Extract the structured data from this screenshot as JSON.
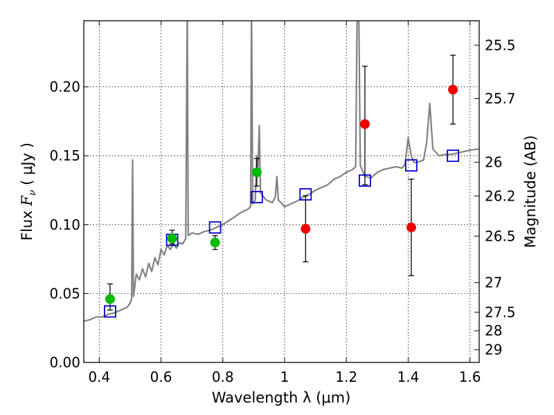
{
  "chart_data": {
    "type": "scatter",
    "xlabel": "Wavelength  λ (μm)",
    "ylabel_text": "Flux  ",
    "ylabel_symbol": "F",
    "ylabel_sub": "ν",
    "ylabel_unit": " ( μJy )",
    "y2label": "Magnitude (AB)",
    "xlim": [
      0.35,
      1.63
    ],
    "ylim": [
      0.0,
      0.248
    ],
    "grid": true,
    "x_ticks": [
      0.4,
      0.6,
      0.8,
      1.0,
      1.2,
      1.4,
      1.6
    ],
    "x_tick_labels": [
      "0.4",
      "0.6",
      "0.8",
      "1",
      "1.2",
      "1.4",
      "1.6"
    ],
    "y_ticks": [
      0.0,
      0.05,
      0.1,
      0.15,
      0.2
    ],
    "y_tick_labels": [
      "0.00",
      "0.05",
      "0.10",
      "0.15",
      "0.20"
    ],
    "y2_ticks": [
      {
        "label": "25.5",
        "flux": 0.2303
      },
      {
        "label": "25.7",
        "flux": 0.1915
      },
      {
        "label": "26",
        "flux": 0.1453
      },
      {
        "label": "26.2",
        "flux": 0.1208
      },
      {
        "label": "26.5",
        "flux": 0.0917
      },
      {
        "label": "27",
        "flux": 0.0579
      },
      {
        "label": "27.5",
        "flux": 0.0365
      },
      {
        "label": "28",
        "flux": 0.023
      },
      {
        "label": "29",
        "flux": 0.0092
      }
    ],
    "colors": {
      "spectrum": "#808080",
      "green_points": "#00bb00",
      "red_points": "#ee0000",
      "squares": "#0000cc",
      "errorbars": "#000000",
      "grid": "#000000"
    },
    "series": [
      {
        "type": "line",
        "points": [
          [
            0.35,
            0.03
          ],
          [
            0.37,
            0.031
          ],
          [
            0.39,
            0.033
          ],
          [
            0.41,
            0.033
          ],
          [
            0.43,
            0.035
          ],
          [
            0.45,
            0.036
          ],
          [
            0.47,
            0.038
          ],
          [
            0.49,
            0.04
          ],
          [
            0.5,
            0.043
          ],
          [
            0.505,
            0.046
          ],
          [
            0.508,
            0.147
          ],
          [
            0.511,
            0.048
          ],
          [
            0.52,
            0.064
          ],
          [
            0.53,
            0.06
          ],
          [
            0.54,
            0.068
          ],
          [
            0.55,
            0.062
          ],
          [
            0.56,
            0.072
          ],
          [
            0.57,
            0.066
          ],
          [
            0.58,
            0.076
          ],
          [
            0.59,
            0.071
          ],
          [
            0.6,
            0.082
          ],
          [
            0.61,
            0.078
          ],
          [
            0.62,
            0.085
          ],
          [
            0.63,
            0.082
          ],
          [
            0.64,
            0.086
          ],
          [
            0.65,
            0.083
          ],
          [
            0.66,
            0.087
          ],
          [
            0.67,
            0.086
          ],
          [
            0.675,
            0.088
          ],
          [
            0.68,
            0.09
          ],
          [
            0.685,
            0.26
          ],
          [
            0.688,
            0.092
          ],
          [
            0.7,
            0.094
          ],
          [
            0.72,
            0.093
          ],
          [
            0.74,
            0.095
          ],
          [
            0.76,
            0.096
          ],
          [
            0.78,
            0.098
          ],
          [
            0.8,
            0.1
          ],
          [
            0.82,
            0.103
          ],
          [
            0.84,
            0.106
          ],
          [
            0.86,
            0.109
          ],
          [
            0.88,
            0.111
          ],
          [
            0.89,
            0.113
          ],
          [
            0.893,
            0.26
          ],
          [
            0.897,
            0.115
          ],
          [
            0.905,
            0.118
          ],
          [
            0.91,
            0.15
          ],
          [
            0.913,
            0.135
          ],
          [
            0.918,
            0.172
          ],
          [
            0.922,
            0.123
          ],
          [
            0.94,
            0.118
          ],
          [
            0.96,
            0.116
          ],
          [
            0.97,
            0.12
          ],
          [
            0.975,
            0.135
          ],
          [
            0.98,
            0.118
          ],
          [
            1.0,
            0.113
          ],
          [
            1.02,
            0.115
          ],
          [
            1.04,
            0.117
          ],
          [
            1.06,
            0.12
          ],
          [
            1.08,
            0.122
          ],
          [
            1.1,
            0.125
          ],
          [
            1.12,
            0.127
          ],
          [
            1.14,
            0.129
          ],
          [
            1.16,
            0.133
          ],
          [
            1.18,
            0.135
          ],
          [
            1.2,
            0.138
          ],
          [
            1.22,
            0.14
          ],
          [
            1.23,
            0.142
          ],
          [
            1.235,
            0.26
          ],
          [
            1.24,
            0.26
          ],
          [
            1.245,
            0.143
          ],
          [
            1.26,
            0.135
          ],
          [
            1.28,
            0.134
          ],
          [
            1.3,
            0.138
          ],
          [
            1.32,
            0.14
          ],
          [
            1.34,
            0.141
          ],
          [
            1.36,
            0.142
          ],
          [
            1.38,
            0.141
          ],
          [
            1.39,
            0.144
          ],
          [
            1.4,
            0.163
          ],
          [
            1.41,
            0.15
          ],
          [
            1.42,
            0.145
          ],
          [
            1.44,
            0.146
          ],
          [
            1.45,
            0.147
          ],
          [
            1.46,
            0.16
          ],
          [
            1.47,
            0.188
          ],
          [
            1.48,
            0.155
          ],
          [
            1.5,
            0.15
          ],
          [
            1.52,
            0.151
          ],
          [
            1.54,
            0.151
          ],
          [
            1.56,
            0.152
          ],
          [
            1.58,
            0.153
          ],
          [
            1.6,
            0.154
          ],
          [
            1.63,
            0.155
          ]
        ]
      },
      {
        "type": "scatter",
        "points": [
          {
            "x": 0.435,
            "y": 0.046,
            "yerr_low": 0.008,
            "yerr_high": 0.011
          },
          {
            "x": 0.636,
            "y": 0.09,
            "yerr_low": 0.004,
            "yerr_high": 0.006
          },
          {
            "x": 0.775,
            "y": 0.087,
            "yerr_low": 0.005,
            "yerr_high": 0.005
          },
          {
            "x": 0.91,
            "y": 0.138,
            "yerr_low": 0.01,
            "yerr_high": 0.01
          }
        ]
      },
      {
        "type": "scatter",
        "points": [
          {
            "x": 1.068,
            "y": 0.097,
            "yerr_low": 0.024,
            "yerr_high": 0.024
          },
          {
            "x": 1.26,
            "y": 0.173,
            "yerr_low": 0.044,
            "yerr_high": 0.042
          },
          {
            "x": 1.41,
            "y": 0.098,
            "yerr_low": 0.035,
            "yerr_high": 0.035
          },
          {
            "x": 1.545,
            "y": 0.198,
            "yerr_low": 0.025,
            "yerr_high": 0.025
          }
        ]
      },
      {
        "type": "scatter",
        "points": [
          {
            "x": 0.435,
            "y": 0.037
          },
          {
            "x": 0.636,
            "y": 0.089
          },
          {
            "x": 0.775,
            "y": 0.098
          },
          {
            "x": 0.91,
            "y": 0.12
          },
          {
            "x": 1.068,
            "y": 0.122
          },
          {
            "x": 1.26,
            "y": 0.132
          },
          {
            "x": 1.41,
            "y": 0.143
          },
          {
            "x": 1.545,
            "y": 0.15
          }
        ]
      }
    ]
  }
}
